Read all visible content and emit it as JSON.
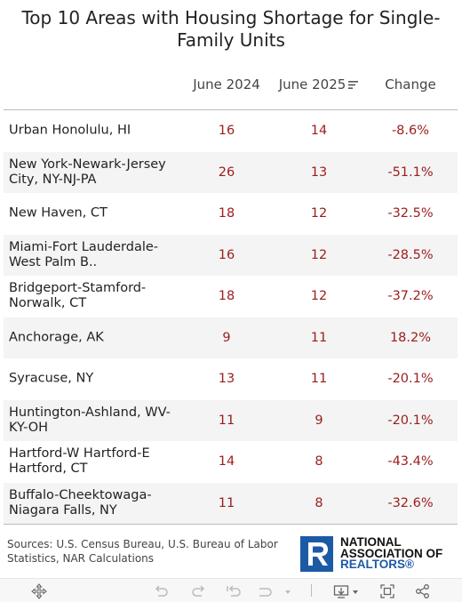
{
  "chart_data": {
    "type": "table",
    "title": "Top 10 Areas with Housing Shortage for Single-Family Units",
    "columns": [
      "June 2024",
      "June 2025",
      "Change"
    ],
    "sorted_column": "June 2025",
    "rows": [
      {
        "area": "Urban Honolulu, HI",
        "june_2024": "16",
        "june_2025": "14",
        "change": "-8.6%"
      },
      {
        "area": "New York-Newark-Jersey City, NY-NJ-PA",
        "june_2024": "26",
        "june_2025": "13",
        "change": "-51.1%"
      },
      {
        "area": "New Haven, CT",
        "june_2024": "18",
        "june_2025": "12",
        "change": "-32.5%"
      },
      {
        "area": "Miami-Fort Lauderdale-West Palm B..",
        "june_2024": "16",
        "june_2025": "12",
        "change": "-28.5%"
      },
      {
        "area": "Bridgeport-Stamford-Norwalk, CT",
        "june_2024": "18",
        "june_2025": "12",
        "change": "-37.2%"
      },
      {
        "area": "Anchorage, AK",
        "june_2024": "9",
        "june_2025": "11",
        "change": "18.2%"
      },
      {
        "area": "Syracuse, NY",
        "june_2024": "13",
        "june_2025": "11",
        "change": "-20.1%"
      },
      {
        "area": "Huntington-Ashland, WV-KY-OH",
        "june_2024": "11",
        "june_2025": "9",
        "change": "-20.1%"
      },
      {
        "area": "Hartford-W Hartford-E Hartford, CT",
        "june_2024": "14",
        "june_2025": "8",
        "change": "-43.4%"
      },
      {
        "area": "Buffalo-Cheektowaga-Niagara Falls, NY",
        "june_2024": "11",
        "june_2025": "8",
        "change": "-32.6%"
      }
    ],
    "value_color": "#9b1c1c"
  },
  "footer": {
    "source": "Sources: U.S. Census Bureau, U.S. Bureau of Labor Statistics, NAR Calculations",
    "logo_line1": "NATIONAL",
    "logo_line2": "ASSOCIATION OF",
    "logo_line3": "REALTORS®"
  },
  "toolbar": {
    "icons": [
      "move-icon",
      "undo-icon",
      "redo-icon",
      "reset-icon",
      "forward-icon",
      "download-icon",
      "fullscreen-icon",
      "share-icon"
    ]
  },
  "colors": {
    "brand_blue": "#1d5aa5",
    "alt_row": "#f4f4f4"
  }
}
